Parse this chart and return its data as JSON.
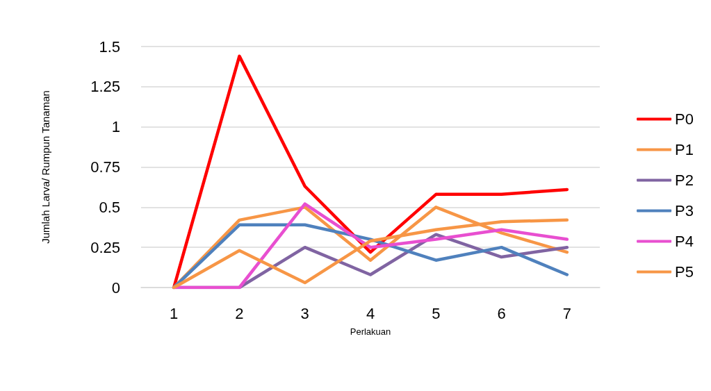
{
  "chart_data": {
    "type": "line",
    "xlabel": "Perlakuan",
    "ylabel": "Jumlah Larva/ Rumpun Tanaman",
    "categories": [
      "1",
      "2",
      "3",
      "4",
      "5",
      "6",
      "7"
    ],
    "series": [
      {
        "name": "P0",
        "color": "#ff0000",
        "values": [
          0,
          1.44,
          0.63,
          0.22,
          0.58,
          0.58,
          0.61
        ]
      },
      {
        "name": "P1",
        "color": "#f79646",
        "values": [
          0,
          0.42,
          0.5,
          0.17,
          0.5,
          0.34,
          0.22
        ]
      },
      {
        "name": "P2",
        "color": "#8064a2",
        "values": [
          0,
          0,
          0.25,
          0.08,
          0.33,
          0.19,
          0.25
        ]
      },
      {
        "name": "P3",
        "color": "#4f81bd",
        "values": [
          0,
          0.39,
          0.39,
          0.3,
          0.17,
          0.25,
          0.08
        ]
      },
      {
        "name": "P4",
        "color": "#e84fd0",
        "values": [
          0,
          0,
          0.52,
          0.25,
          0.3,
          0.36,
          0.3
        ]
      },
      {
        "name": "P5",
        "color": "#f79646",
        "values": [
          0,
          0.23,
          0.03,
          0.29,
          0.36,
          0.41,
          0.42
        ]
      }
    ],
    "ylim": [
      0,
      1.5
    ],
    "yticks": [
      0,
      0.25,
      0.5,
      0.75,
      1,
      1.25,
      1.5
    ],
    "grid": "y",
    "legend": "right",
    "marker": "none",
    "line_style": "solid"
  }
}
